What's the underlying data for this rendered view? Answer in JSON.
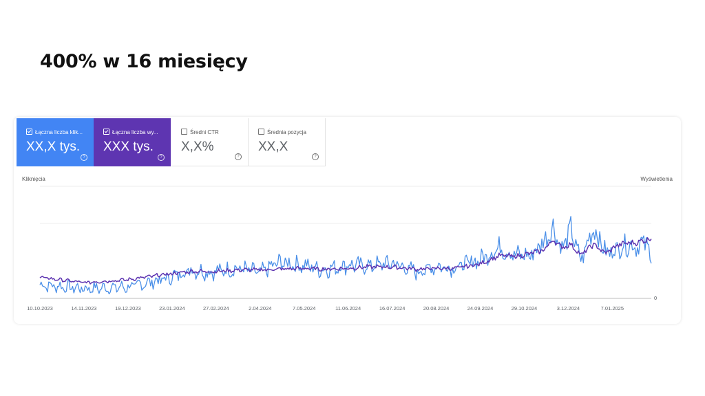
{
  "slide": {
    "title": "400% w 16 miesięcy"
  },
  "metrics": [
    {
      "label": "Łączna liczba klik...",
      "value": "XX,X tys.",
      "checked": true,
      "color": "#4285f4"
    },
    {
      "label": "Łączna liczba wy...",
      "value": "XXX tys.",
      "checked": true,
      "color": "#5e35b1"
    },
    {
      "label": "Średni CTR",
      "value": "X,X%",
      "checked": false
    },
    {
      "label": "Średnia pozycja",
      "value": "XX,X",
      "checked": false
    }
  ],
  "chart_data": {
    "type": "line",
    "ylabel_left": "Kliknięcia",
    "ylabel_right": "Wyświetlenia",
    "y_zero_label": "0",
    "x_tick_labels": [
      "10.10.2023",
      "14.11.2023",
      "19.12.2023",
      "23.01.2024",
      "27.02.2024",
      "2.04.2024",
      "7.05.2024",
      "11.06.2024",
      "16.07.2024",
      "20.08.2024",
      "24.09.2024",
      "29.10.2024",
      "3.12.2024",
      "7.01.2025"
    ],
    "x_start": "2023-10-10",
    "x_end": "2025-02-07",
    "y_scale": "relative (0 = baseline, 100 = top gridline)",
    "grid": true,
    "series": [
      {
        "name": "Kliknięcia",
        "color": "#4a8fe8",
        "values": [
          [
            0,
            18
          ],
          [
            35,
            13
          ],
          [
            70,
            15
          ],
          [
            100,
            26
          ],
          [
            120,
            38
          ],
          [
            135,
            35
          ],
          [
            160,
            40
          ],
          [
            175,
            34
          ],
          [
            190,
            48
          ],
          [
            210,
            44
          ],
          [
            225,
            38
          ],
          [
            245,
            45
          ],
          [
            260,
            43
          ],
          [
            280,
            47
          ],
          [
            300,
            35
          ],
          [
            315,
            43
          ],
          [
            330,
            41
          ],
          [
            350,
            52
          ],
          [
            365,
            68
          ],
          [
            378,
            58
          ],
          [
            390,
            57
          ],
          [
            400,
            75
          ],
          [
            408,
            95
          ],
          [
            415,
            65
          ],
          [
            422,
            92
          ],
          [
            430,
            50
          ],
          [
            440,
            95
          ],
          [
            450,
            60
          ],
          [
            458,
            66
          ],
          [
            466,
            72
          ],
          [
            473,
            70
          ],
          [
            482,
            74
          ],
          [
            486,
            53
          ]
        ]
      },
      {
        "name": "Wyświetlenia",
        "color": "#5e35b1",
        "values": [
          [
            0,
            28
          ],
          [
            35,
            21
          ],
          [
            70,
            25
          ],
          [
            100,
            32
          ],
          [
            120,
            36
          ],
          [
            140,
            36
          ],
          [
            160,
            38
          ],
          [
            175,
            38
          ],
          [
            190,
            39
          ],
          [
            210,
            40
          ],
          [
            225,
            39
          ],
          [
            245,
            40
          ],
          [
            260,
            42
          ],
          [
            280,
            42
          ],
          [
            300,
            39
          ],
          [
            315,
            40
          ],
          [
            330,
            40
          ],
          [
            350,
            46
          ],
          [
            365,
            57
          ],
          [
            378,
            56
          ],
          [
            390,
            60
          ],
          [
            400,
            64
          ],
          [
            408,
            78
          ],
          [
            415,
            68
          ],
          [
            422,
            72
          ],
          [
            430,
            58
          ],
          [
            440,
            72
          ],
          [
            450,
            60
          ],
          [
            458,
            70
          ],
          [
            466,
            74
          ],
          [
            473,
            74
          ],
          [
            482,
            78
          ],
          [
            486,
            80
          ]
        ]
      }
    ]
  }
}
